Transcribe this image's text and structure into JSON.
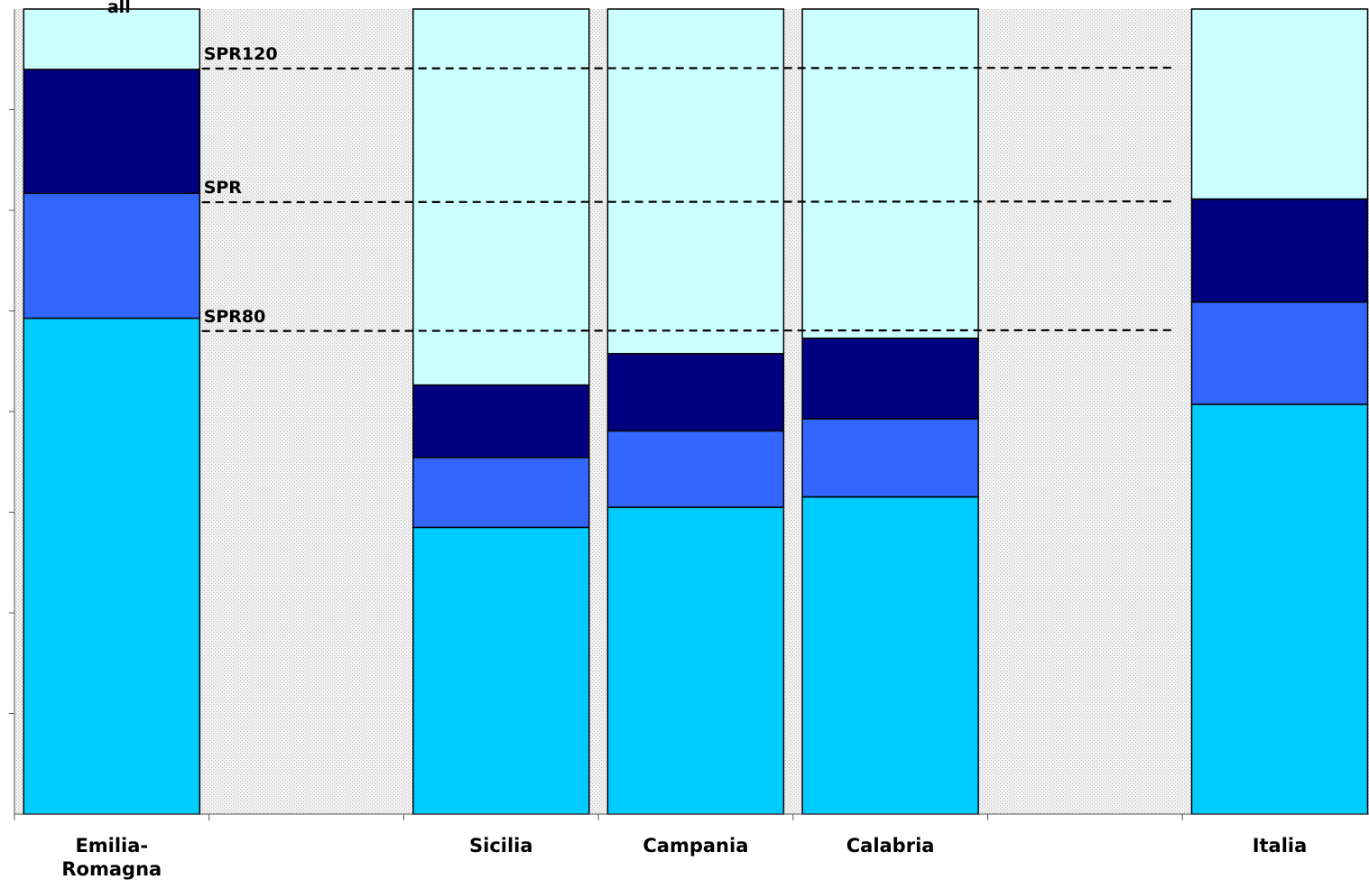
{
  "chart_data": {
    "type": "bar",
    "stacked": true,
    "title": "",
    "xlabel": "",
    "ylabel": "",
    "ylim": [
      0,
      100
    ],
    "grid": false,
    "legend": "none",
    "categories": [
      "Emilia-\nRomagna",
      "",
      "Sicilia",
      "Campania",
      "Calabria",
      "",
      "Italia"
    ],
    "series": [
      {
        "color": "#00ccff",
        "values": [
          61.6,
          0,
          35.6,
          38.1,
          39.4,
          0,
          50.9
        ]
      },
      {
        "color": "#3366ff",
        "values": [
          15.5,
          0,
          8.7,
          9.5,
          9.7,
          0,
          12.7
        ]
      },
      {
        "color": "#000080",
        "values": [
          15.4,
          0,
          9.0,
          9.6,
          10.0,
          0,
          12.8
        ]
      },
      {
        "color": "#ccffff",
        "values": [
          7.5,
          0,
          46.7,
          42.8,
          40.9,
          0,
          23.6
        ]
      }
    ],
    "reference_lines": [
      {
        "label": "SPR120",
        "value": 92.6
      },
      {
        "label": "SPR",
        "value": 76.0
      },
      {
        "label": "SPR80",
        "value": 60.0
      }
    ],
    "clipped_top_label": "all",
    "colors": {
      "plot_background": "#eeeeee",
      "bar_outline": "#000000",
      "reference_line": "#000000"
    }
  }
}
